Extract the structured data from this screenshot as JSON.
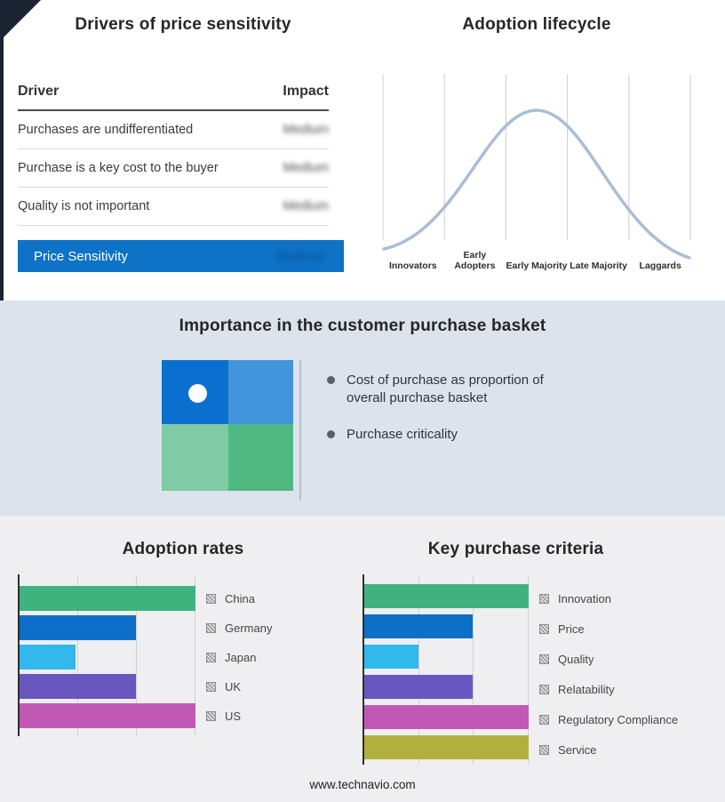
{
  "palette": {
    "dark_corner": "#1b2433",
    "mid_band_bg": "#dce3ec",
    "bottom_bg": "#efeff1",
    "highlight_row_bg": "#0e72c6",
    "curve": "#a9bdd6",
    "quad_top_left": "#0b6fd0",
    "quad_top_right": "#4294dc",
    "quad_bottom_left": "#80caa5",
    "quad_bottom_right": "#4fb981"
  },
  "drivers_panel": {
    "title": "Drivers of price sensitivity",
    "col_driver": "Driver",
    "col_impact": "Impact",
    "rows": [
      {
        "driver": "Purchases are undifferentiated",
        "impact": "Medium"
      },
      {
        "driver": "Purchase is a key cost to the buyer",
        "impact": "Medium"
      },
      {
        "driver": "Quality is not important",
        "impact": "Medium"
      }
    ],
    "highlight": {
      "driver": "Price Sensitivity",
      "impact": "Medium"
    }
  },
  "basket_panel": {
    "title": "Importance in the customer purchase basket",
    "bullets": [
      "Cost of purchase as proportion of overall purchase basket",
      "Purchase criticality"
    ]
  },
  "footer": {
    "site": "www.technavio.com"
  },
  "chart_data": [
    {
      "id": "adoption-lifecycle",
      "type": "line",
      "shape": "bell-curve",
      "title": "Adoption lifecycle",
      "categories": [
        "Innovators",
        "Early Adopters",
        "Early Majority",
        "Late Majority",
        "Laggards"
      ],
      "x_relative": [
        0,
        25,
        50,
        75,
        100
      ],
      "y_relative": [
        4,
        45,
        100,
        45,
        4
      ],
      "grid": "vertical-only",
      "legend": "none"
    },
    {
      "id": "adoption-rates",
      "type": "bar",
      "orientation": "horizontal",
      "title": "Adoption rates",
      "categories": [
        "China",
        "Germany",
        "Japan",
        "UK",
        "US"
      ],
      "values": [
        100,
        66,
        32,
        66,
        100
      ],
      "colors": [
        "#40b27e",
        "#0d6fc8",
        "#31b8ec",
        "#6757be",
        "#c258b6"
      ],
      "xlim": [
        0,
        100
      ],
      "gridlines": [
        33,
        66,
        100
      ],
      "legend_position": "right"
    },
    {
      "id": "key-purchase-criteria",
      "type": "bar",
      "orientation": "horizontal",
      "title": "Key purchase criteria",
      "categories": [
        "Innovation",
        "Price",
        "Quality",
        "Relatability",
        "Regulatory Compliance",
        "Service"
      ],
      "values": [
        100,
        66,
        33,
        66,
        100,
        100
      ],
      "colors": [
        "#40b27e",
        "#0d6fc8",
        "#31b8ec",
        "#6757be",
        "#c258b6",
        "#b1b03c"
      ],
      "xlim": [
        0,
        100
      ],
      "gridlines": [
        33,
        66,
        100
      ],
      "legend_position": "right"
    }
  ]
}
